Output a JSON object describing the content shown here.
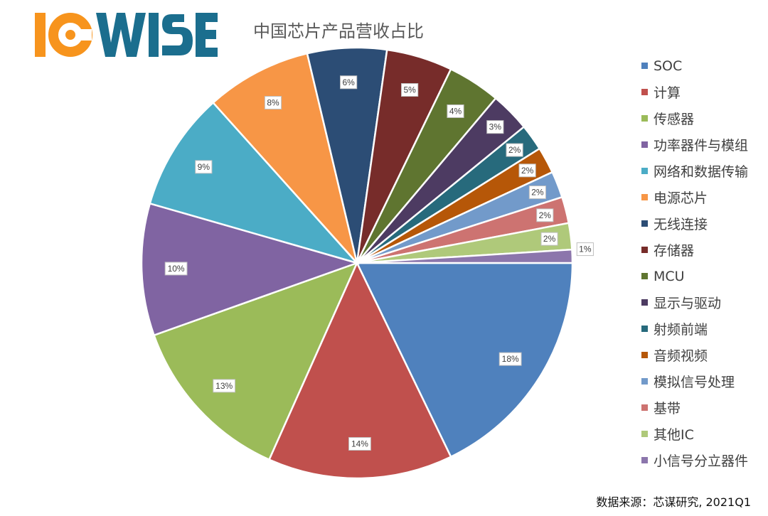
{
  "logo": {
    "text": "ICWISE",
    "colors": {
      "ic": "#F7941D",
      "wise": "#1B6E8E"
    }
  },
  "source": "数据来源：芯谋研究, 2021Q1",
  "chart_data": {
    "type": "pie",
    "title": "中国芯片产品营收占比",
    "legend_position": "right",
    "start_angle_deg": 90,
    "direction": "clockwise",
    "slices": [
      {
        "label": "SOC",
        "value": 18,
        "data_label": "18%",
        "color": "#4F81BD"
      },
      {
        "label": "计算",
        "value": 14,
        "data_label": "14%",
        "color": "#C0504D"
      },
      {
        "label": "传感器",
        "value": 13,
        "data_label": "13%",
        "color": "#9BBB59"
      },
      {
        "label": "功率器件与模组",
        "value": 10,
        "data_label": "10%",
        "color": "#8064A2"
      },
      {
        "label": "网络和数据传输",
        "value": 9,
        "data_label": "9%",
        "color": "#4BACC6"
      },
      {
        "label": "电源芯片",
        "value": 8,
        "data_label": "8%",
        "color": "#F79646"
      },
      {
        "label": "无线连接",
        "value": 6,
        "data_label": "6%",
        "color": "#2C4D75"
      },
      {
        "label": "存储器",
        "value": 5,
        "data_label": "5%",
        "color": "#772C2A"
      },
      {
        "label": "MCU",
        "value": 4,
        "data_label": "4%",
        "color": "#5F7530"
      },
      {
        "label": "显示与驱动",
        "value": 3,
        "data_label": "3%",
        "color": "#4D3B62"
      },
      {
        "label": "射频前端",
        "value": 2,
        "data_label": "2%",
        "color": "#276A7C"
      },
      {
        "label": "音频视频",
        "value": 2,
        "data_label": "2%",
        "color": "#B65708"
      },
      {
        "label": "模拟信号处理",
        "value": 2,
        "data_label": "2%",
        "color": "#729ACA"
      },
      {
        "label": "基带",
        "value": 2,
        "data_label": "2%",
        "color": "#CD7371"
      },
      {
        "label": "其他IC",
        "value": 2,
        "data_label": "2%",
        "color": "#AFC97A"
      },
      {
        "label": "小信号分立器件",
        "value": 1,
        "data_label": "1%",
        "color": "#8C76AC"
      }
    ]
  }
}
